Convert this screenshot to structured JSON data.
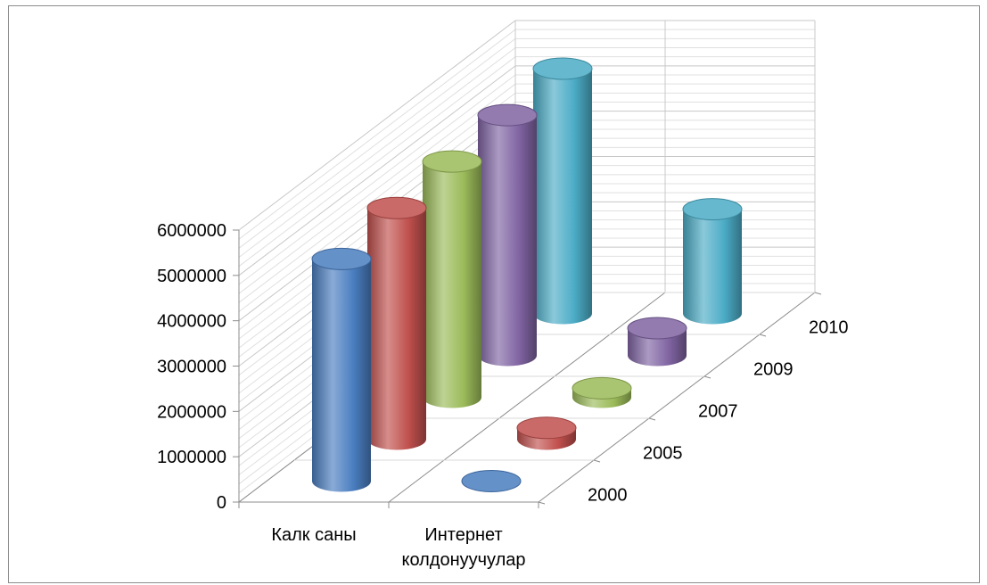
{
  "chart_data": {
    "type": "bar",
    "style": "3d-cylinder",
    "categories": [
      "Калк саны",
      "Интернет колдонуучулар"
    ],
    "category_lines": [
      [
        "Калк саны"
      ],
      [
        "Интернет",
        "колдонуучулар"
      ]
    ],
    "series": [
      {
        "name": "2000",
        "color": "#4a7ec0",
        "values": [
          4900000,
          1000
        ]
      },
      {
        "name": "2005",
        "color": "#c0504d",
        "values": [
          5100000,
          250000
        ]
      },
      {
        "name": "2007",
        "color": "#9bbb59",
        "values": [
          5200000,
          200000
        ]
      },
      {
        "name": "2009",
        "color": "#8064a2",
        "values": [
          5300000,
          600000
        ]
      },
      {
        "name": "2010",
        "color": "#4bacc6",
        "values": [
          5400000,
          2300000
        ]
      }
    ],
    "y_ticks": [
      "0",
      "1000000",
      "2000000",
      "3000000",
      "4000000",
      "5000000",
      "6000000"
    ],
    "ylim": [
      0,
      6000000
    ],
    "grid": true,
    "legend": "depth-axis"
  }
}
